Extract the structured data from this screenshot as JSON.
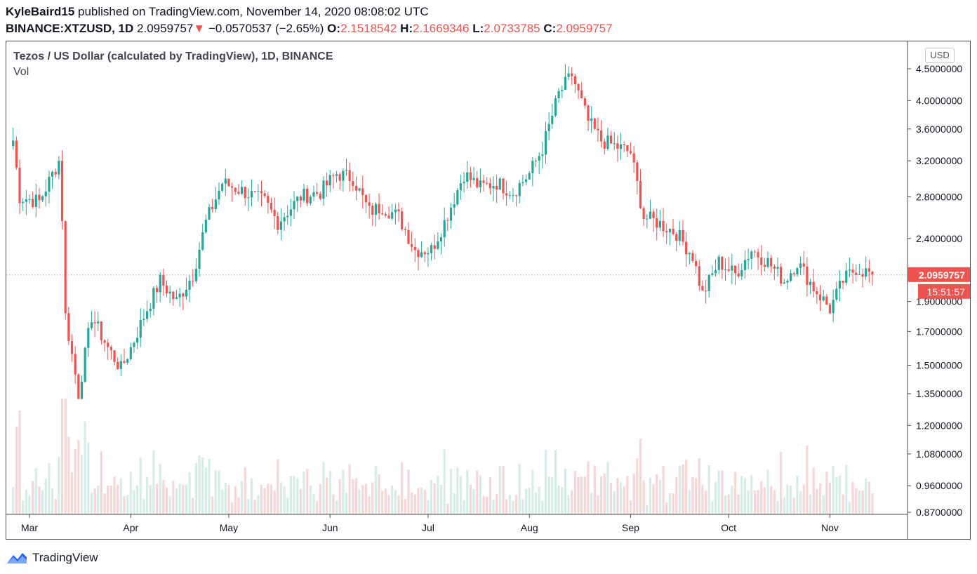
{
  "header": {
    "publisher": "KyleBaird15",
    "published_text": "published on TradingView.com, November 14, 2020 08:08:02 UTC",
    "symbol": "BINANCE:XTZUSD, 1D",
    "last": "2.0959757",
    "arrow": "▼",
    "change": "−0.0570537 (−2.65%)",
    "o_label": "O:",
    "o_value": "2.1518542",
    "h_label": "H:",
    "h_value": "2.1669346",
    "l_label": "L:",
    "l_value": "2.0733785",
    "c_label": "C:",
    "c_value": "2.0959757"
  },
  "legend": {
    "title": "Tezos / US Dollar (calculated by TradingView), 1D, BINANCE",
    "vol_label": "Vol"
  },
  "currency_button": "USD",
  "price_tag": "2.0959757",
  "countdown_tag": "15:51:57",
  "footer": {
    "brand": "TradingView",
    "logo_icon": "tradingview-logo-icon"
  },
  "colors": {
    "up": "#26a69a",
    "down": "#ef5350",
    "vol_up": "#d6ede7",
    "vol_down": "#f5d7d7"
  },
  "chart_data": {
    "type": "candlestick",
    "scale": "log",
    "last_price": 2.0959757,
    "y_ticks": [
      "4.5000000",
      "4.0000000",
      "3.6000000",
      "3.2000000",
      "2.8000000",
      "2.4000000",
      "1.9000000",
      "1.7000000",
      "1.5000000",
      "1.3500000",
      "1.2000000",
      "1.0800000",
      "0.9600000",
      "0.8700000"
    ],
    "x_ticks": [
      "Mar",
      "Apr",
      "May",
      "Jun",
      "Jul",
      "Aug",
      "Sep",
      "Oct",
      "Nov"
    ],
    "anchors": [
      [
        "02-25",
        3.45
      ],
      [
        "02-27",
        2.8
      ],
      [
        "03-04",
        2.75
      ],
      [
        "03-10",
        3.2
      ],
      [
        "03-11",
        2.6
      ],
      [
        "03-12",
        1.8
      ],
      [
        "03-16",
        1.35
      ],
      [
        "03-20",
        1.8
      ],
      [
        "03-25",
        1.6
      ],
      [
        "03-29",
        1.48
      ],
      [
        "04-01",
        1.6
      ],
      [
        "04-06",
        1.85
      ],
      [
        "04-10",
        2.05
      ],
      [
        "04-15",
        1.9
      ],
      [
        "04-20",
        2.1
      ],
      [
        "04-24",
        2.55
      ],
      [
        "04-29",
        2.95
      ],
      [
        "05-06",
        2.85
      ],
      [
        "05-12",
        2.75
      ],
      [
        "05-16",
        2.55
      ],
      [
        "05-23",
        2.8
      ],
      [
        "05-29",
        2.85
      ],
      [
        "06-03",
        3.05
      ],
      [
        "06-08",
        3.0
      ],
      [
        "06-13",
        2.65
      ],
      [
        "06-17",
        2.7
      ],
      [
        "06-22",
        2.6
      ],
      [
        "06-27",
        2.3
      ],
      [
        "07-02",
        2.3
      ],
      [
        "07-06",
        2.55
      ],
      [
        "07-12",
        3.05
      ],
      [
        "07-17",
        2.9
      ],
      [
        "07-22",
        2.95
      ],
      [
        "07-27",
        2.85
      ],
      [
        "08-01",
        3.05
      ],
      [
        "08-05",
        3.35
      ],
      [
        "08-10",
        4.1
      ],
      [
        "08-14",
        4.4
      ],
      [
        "08-19",
        3.7
      ],
      [
        "08-23",
        3.45
      ],
      [
        "08-29",
        3.35
      ],
      [
        "09-01",
        3.3
      ],
      [
        "09-05",
        2.6
      ],
      [
        "09-09",
        2.55
      ],
      [
        "09-15",
        2.45
      ],
      [
        "09-20",
        2.25
      ],
      [
        "09-23",
        1.95
      ],
      [
        "09-28",
        2.2
      ],
      [
        "10-03",
        2.1
      ],
      [
        "10-08",
        2.3
      ],
      [
        "10-13",
        2.2
      ],
      [
        "10-18",
        2.05
      ],
      [
        "10-22",
        2.2
      ],
      [
        "10-27",
        2.0
      ],
      [
        "11-01",
        1.85
      ],
      [
        "11-05",
        2.05
      ],
      [
        "11-09",
        2.15
      ],
      [
        "11-14",
        2.1
      ]
    ]
  }
}
